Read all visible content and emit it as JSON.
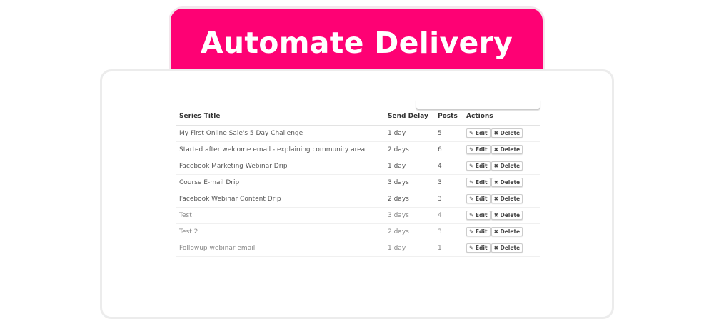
{
  "banner": {
    "title": "Automate Delivery",
    "color": "#fe0174"
  },
  "table": {
    "headers": {
      "title": "Series Title",
      "delay": "Send Delay",
      "posts": "Posts",
      "actions": "Actions"
    },
    "edit_label": "Edit",
    "delete_label": "Delete",
    "edit_icon": "pencil-icon",
    "delete_icon": "x-icon",
    "rows": [
      {
        "title": "My First Online Sale's 5 Day Challenge",
        "delay": "1 day",
        "posts": "5"
      },
      {
        "title": "Started after welcome email - explaining community area",
        "delay": "2 days",
        "posts": "6"
      },
      {
        "title": "Facebook Marketing Webinar Drip",
        "delay": "1 day",
        "posts": "4"
      },
      {
        "title": "Course E-mail Drip",
        "delay": "3 days",
        "posts": "3"
      },
      {
        "title": "Facebook Webinar Content Drip",
        "delay": "2 days",
        "posts": "3"
      },
      {
        "title": "Test",
        "delay": "3 days",
        "posts": "4"
      },
      {
        "title": "Test 2",
        "delay": "2 days",
        "posts": "3"
      },
      {
        "title": "Followup webinar email",
        "delay": "1 day",
        "posts": "1"
      }
    ]
  }
}
